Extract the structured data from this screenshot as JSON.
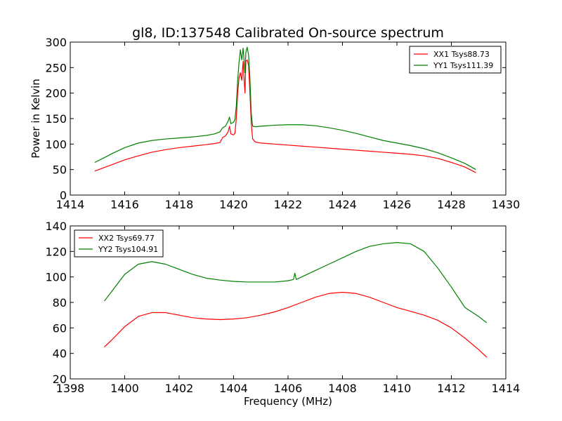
{
  "figure": {
    "title": "gl8, ID:137548 Calibrated On-source spectrum"
  },
  "chart_data": [
    {
      "type": "line",
      "title": "gl8, ID:137548 Calibrated On-source spectrum",
      "xlabel": "",
      "ylabel": "Power in Kelvin",
      "xlim": [
        1414,
        1430
      ],
      "ylim": [
        0,
        300
      ],
      "xticks": [
        1414,
        1416,
        1418,
        1420,
        1422,
        1424,
        1426,
        1428,
        1430
      ],
      "yticks": [
        0,
        50,
        100,
        150,
        200,
        250,
        300
      ],
      "grid": false,
      "legend_position": "top-right",
      "series": [
        {
          "name": "XX1 Tsys88.73",
          "color": "#ff0000",
          "x": [
            1414.9,
            1415.2,
            1415.6,
            1416.0,
            1416.5,
            1417.0,
            1417.5,
            1418.0,
            1418.5,
            1419.0,
            1419.3,
            1419.5,
            1419.6,
            1419.7,
            1419.8,
            1419.85,
            1419.9,
            1420.0,
            1420.05,
            1420.1,
            1420.15,
            1420.2,
            1420.25,
            1420.3,
            1420.35,
            1420.4,
            1420.42,
            1420.45,
            1420.5,
            1420.55,
            1420.6,
            1420.65,
            1420.7,
            1420.8,
            1421.0,
            1421.5,
            1422.0,
            1422.5,
            1423.0,
            1423.5,
            1424.0,
            1424.5,
            1425.0,
            1425.5,
            1426.0,
            1426.5,
            1427.0,
            1427.5,
            1428.0,
            1428.5,
            1428.9
          ],
          "values": [
            47,
            53,
            61,
            69,
            77,
            84,
            89,
            93,
            96,
            99,
            101,
            103,
            113,
            116,
            124,
            135,
            120,
            118,
            121,
            150,
            200,
            230,
            240,
            225,
            262,
            215,
            200,
            262,
            265,
            255,
            200,
            140,
            110,
            104,
            102,
            100,
            98,
            96,
            94,
            92,
            90,
            88,
            86,
            84,
            82,
            80,
            77,
            72,
            64,
            55,
            44
          ]
        },
        {
          "name": "YY1 Tsys111.39",
          "color": "#008000",
          "x": [
            1414.9,
            1415.2,
            1415.6,
            1416.0,
            1416.5,
            1417.0,
            1417.5,
            1418.0,
            1418.5,
            1419.0,
            1419.3,
            1419.5,
            1419.6,
            1419.7,
            1419.8,
            1419.85,
            1419.9,
            1420.0,
            1420.05,
            1420.1,
            1420.15,
            1420.2,
            1420.25,
            1420.3,
            1420.35,
            1420.4,
            1420.42,
            1420.45,
            1420.5,
            1420.55,
            1420.6,
            1420.65,
            1420.7,
            1420.8,
            1421.0,
            1421.5,
            1422.0,
            1422.5,
            1423.0,
            1423.5,
            1424.0,
            1424.5,
            1425.0,
            1425.5,
            1426.0,
            1426.5,
            1427.0,
            1427.5,
            1428.0,
            1428.5,
            1428.9
          ],
          "values": [
            64,
            72,
            83,
            93,
            102,
            107,
            110,
            112,
            114,
            117,
            120,
            124,
            132,
            135,
            145,
            153,
            140,
            143,
            148,
            175,
            225,
            260,
            285,
            265,
            288,
            255,
            240,
            280,
            290,
            275,
            230,
            160,
            135,
            134,
            135,
            137,
            138,
            138,
            136,
            132,
            127,
            121,
            114,
            107,
            102,
            97,
            91,
            83,
            73,
            62,
            50
          ]
        }
      ]
    },
    {
      "type": "line",
      "title": "",
      "xlabel": "Frequency (MHz)",
      "ylabel": "",
      "xlim": [
        1398,
        1414
      ],
      "ylim": [
        20,
        140
      ],
      "xticks": [
        1398,
        1400,
        1402,
        1404,
        1406,
        1408,
        1410,
        1412,
        1414
      ],
      "yticks": [
        20,
        40,
        60,
        80,
        100,
        120,
        140
      ],
      "grid": false,
      "legend_position": "top-left",
      "series": [
        {
          "name": "XX2 Tsys69.77",
          "color": "#ff0000",
          "x": [
            1399.25,
            1399.5,
            1400.0,
            1400.5,
            1401.0,
            1401.5,
            1402.0,
            1402.5,
            1403.0,
            1403.5,
            1404.0,
            1404.5,
            1405.0,
            1405.5,
            1406.0,
            1406.5,
            1407.0,
            1407.5,
            1408.0,
            1408.5,
            1409.0,
            1409.5,
            1410.0,
            1410.5,
            1411.0,
            1411.5,
            1412.0,
            1412.5,
            1413.0,
            1413.3
          ],
          "values": [
            45,
            50,
            61,
            69,
            72,
            72,
            70,
            68,
            67,
            66.5,
            67,
            68,
            70,
            72.5,
            76,
            80,
            84,
            87,
            88,
            87,
            84,
            80,
            76,
            73,
            70,
            66,
            60,
            52,
            43,
            37
          ]
        },
        {
          "name": "YY2 Tsys104.91",
          "color": "#008000",
          "x": [
            1399.25,
            1399.5,
            1400.0,
            1400.5,
            1401.0,
            1401.5,
            1402.0,
            1402.5,
            1403.0,
            1403.5,
            1404.0,
            1404.5,
            1405.0,
            1405.5,
            1406.0,
            1406.2,
            1406.25,
            1406.3,
            1406.5,
            1407.0,
            1407.5,
            1408.0,
            1408.5,
            1409.0,
            1409.5,
            1410.0,
            1410.5,
            1411.0,
            1411.5,
            1412.0,
            1412.5,
            1413.0,
            1413.3
          ],
          "values": [
            81,
            88,
            102,
            110,
            112,
            110,
            106,
            102,
            99,
            97.5,
            96.5,
            96,
            96,
            96,
            97,
            98,
            103,
            98,
            100,
            105,
            110,
            115,
            120,
            124,
            126,
            127,
            126,
            120,
            107,
            92,
            76,
            69,
            64
          ]
        }
      ]
    }
  ]
}
